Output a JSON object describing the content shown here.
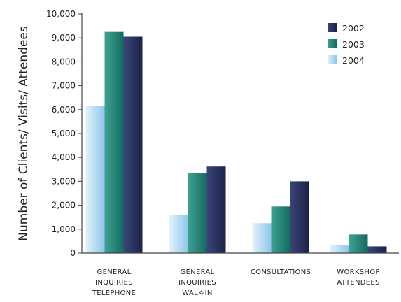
{
  "chart_data": {
    "type": "bar",
    "title": "",
    "xlabel": "",
    "ylabel": "Number of Clients/ Visits/ Attendees",
    "categories": [
      [
        "GENERAL",
        "INQUIRIES",
        "TELEPHONE"
      ],
      [
        "GENERAL",
        "INQUIRIES",
        "WALK-IN"
      ],
      [
        "CONSULTATIONS"
      ],
      [
        "WORKSHOP",
        "ATTENDEES"
      ]
    ],
    "series": [
      {
        "name": "2004",
        "color": "#a9d4ee",
        "values": [
          6150,
          1600,
          1250,
          350
        ]
      },
      {
        "name": "2003",
        "color": "#1f8377",
        "values": [
          9250,
          3350,
          1950,
          780
        ]
      },
      {
        "name": "2002",
        "color": "#27305f",
        "values": [
          9050,
          3620,
          3000,
          280
        ]
      }
    ],
    "legend_order": [
      "2002",
      "2003",
      "2004"
    ],
    "legend_position": "top-right",
    "ylim": [
      0,
      10000
    ],
    "yticks": [
      "0",
      "1,000",
      "2,000",
      "3,000",
      "4,000",
      "5,000",
      "6,000",
      "7,000",
      "8,000",
      "9,000",
      "10,000"
    ],
    "grid": false
  }
}
